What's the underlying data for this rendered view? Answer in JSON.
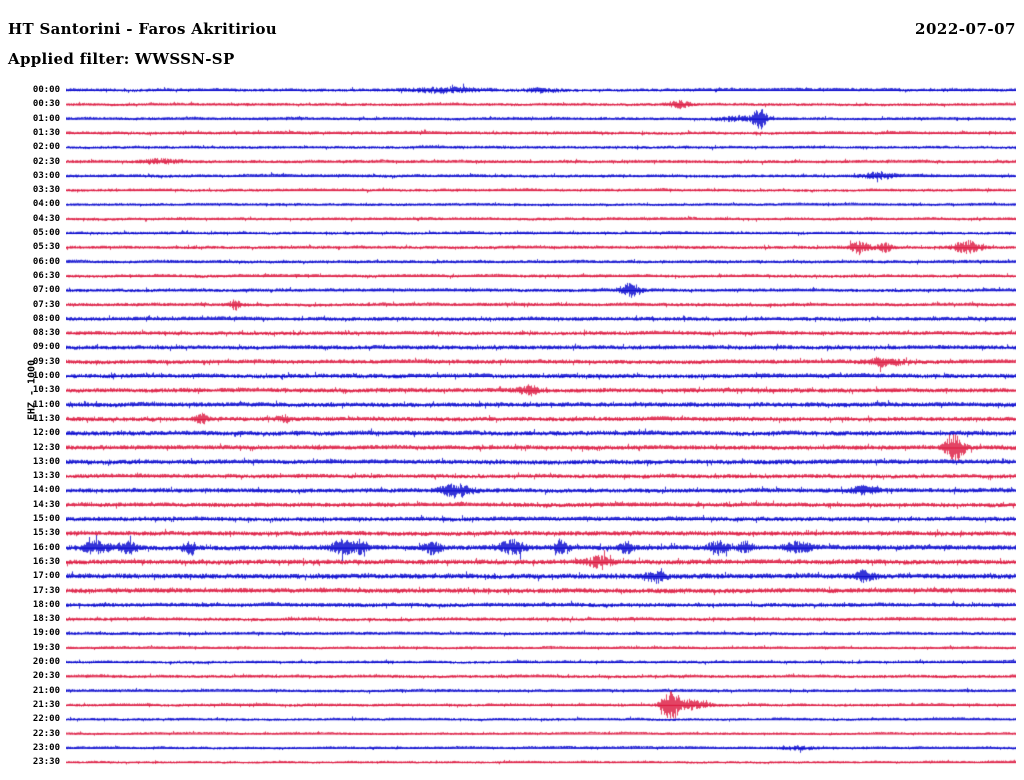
{
  "header": {
    "station_title": "HT Santorini - Faros Akritiriou",
    "date": "2022-07-07",
    "filter_label": "Applied filter: WWSSN-SP"
  },
  "axis": {
    "ylabel": "EHZ - 1000"
  },
  "chart_data": {
    "type": "line",
    "subtype": "helicorder-seismogram",
    "title": "HT Santorini - Faros Akritiriou",
    "date": "2022-07-07",
    "filter": "WWSSN-SP",
    "channel": "EHZ",
    "gain": 1000,
    "row_minutes": 30,
    "legend_position": "none",
    "grid": false,
    "colors": {
      "blue": "#0000cd",
      "red": "#dc143c"
    },
    "rows": [
      {
        "t": "00:00",
        "c": "blue",
        "amp": 1.2,
        "events": [
          {
            "x": 0.4,
            "a": 1.5,
            "w": 25
          },
          {
            "x": 0.5,
            "a": 1.2,
            "w": 12
          }
        ]
      },
      {
        "t": "00:30",
        "c": "red",
        "amp": 1.1,
        "events": [
          {
            "x": 0.645,
            "a": 2.5,
            "w": 7
          }
        ]
      },
      {
        "t": "01:00",
        "c": "blue",
        "amp": 1.1,
        "events": [
          {
            "x": 0.73,
            "a": 7.0,
            "w": 5
          },
          {
            "x": 0.705,
            "a": 1.5,
            "w": 12
          }
        ]
      },
      {
        "t": "01:30",
        "c": "red",
        "amp": 1.2,
        "events": []
      },
      {
        "t": "02:00",
        "c": "blue",
        "amp": 1.1,
        "events": []
      },
      {
        "t": "02:30",
        "c": "red",
        "amp": 1.2,
        "events": [
          {
            "x": 0.1,
            "a": 1.2,
            "w": 15
          }
        ]
      },
      {
        "t": "03:00",
        "c": "blue",
        "amp": 1.2,
        "events": [
          {
            "x": 0.855,
            "a": 2.2,
            "w": 10
          }
        ]
      },
      {
        "t": "03:30",
        "c": "red",
        "amp": 1.1,
        "events": []
      },
      {
        "t": "04:00",
        "c": "blue",
        "amp": 1.0,
        "events": []
      },
      {
        "t": "04:30",
        "c": "red",
        "amp": 1.1,
        "events": []
      },
      {
        "t": "05:00",
        "c": "blue",
        "amp": 1.1,
        "events": []
      },
      {
        "t": "05:30",
        "c": "red",
        "amp": 1.2,
        "events": [
          {
            "x": 0.835,
            "a": 4.0,
            "w": 7
          },
          {
            "x": 0.862,
            "a": 3.0,
            "w": 5
          },
          {
            "x": 0.948,
            "a": 4.0,
            "w": 9
          }
        ]
      },
      {
        "t": "06:00",
        "c": "blue",
        "amp": 1.2,
        "events": []
      },
      {
        "t": "06:30",
        "c": "red",
        "amp": 1.2,
        "events": []
      },
      {
        "t": "07:00",
        "c": "blue",
        "amp": 1.3,
        "events": [
          {
            "x": 0.594,
            "a": 4.0,
            "w": 7
          }
        ]
      },
      {
        "t": "07:30",
        "c": "red",
        "amp": 1.3,
        "events": [
          {
            "x": 0.178,
            "a": 2.8,
            "w": 4
          }
        ]
      },
      {
        "t": "08:00",
        "c": "blue",
        "amp": 1.5,
        "events": []
      },
      {
        "t": "08:30",
        "c": "red",
        "amp": 1.5,
        "events": []
      },
      {
        "t": "09:00",
        "c": "blue",
        "amp": 1.6,
        "events": []
      },
      {
        "t": "09:30",
        "c": "red",
        "amp": 1.6,
        "events": [
          {
            "x": 0.862,
            "a": 2.0,
            "w": 12
          }
        ]
      },
      {
        "t": "10:00",
        "c": "blue",
        "amp": 1.7,
        "events": []
      },
      {
        "t": "10:30",
        "c": "red",
        "amp": 1.7,
        "events": [
          {
            "x": 0.487,
            "a": 2.0,
            "w": 7
          }
        ]
      },
      {
        "t": "11:00",
        "c": "blue",
        "amp": 1.8,
        "events": []
      },
      {
        "t": "11:30",
        "c": "red",
        "amp": 1.7,
        "events": [
          {
            "x": 0.142,
            "a": 2.2,
            "w": 4
          },
          {
            "x": 0.23,
            "a": 1.6,
            "w": 4
          }
        ]
      },
      {
        "t": "12:00",
        "c": "blue",
        "amp": 1.8,
        "events": []
      },
      {
        "t": "12:30",
        "c": "red",
        "amp": 1.7,
        "events": [
          {
            "x": 0.935,
            "a": 5.5,
            "w": 7
          }
        ]
      },
      {
        "t": "13:00",
        "c": "blue",
        "amp": 1.8,
        "events": []
      },
      {
        "t": "13:30",
        "c": "red",
        "amp": 1.6,
        "events": []
      },
      {
        "t": "14:00",
        "c": "blue",
        "amp": 1.7,
        "events": [
          {
            "x": 0.41,
            "a": 3.0,
            "w": 10
          },
          {
            "x": 0.84,
            "a": 1.6,
            "w": 9
          }
        ]
      },
      {
        "t": "14:30",
        "c": "red",
        "amp": 1.7,
        "events": []
      },
      {
        "t": "15:00",
        "c": "blue",
        "amp": 1.7,
        "events": []
      },
      {
        "t": "15:30",
        "c": "red",
        "amp": 1.8,
        "events": []
      },
      {
        "t": "16:00",
        "c": "blue",
        "amp": 1.9,
        "events": [
          {
            "x": 0.03,
            "a": 2.2,
            "w": 9
          },
          {
            "x": 0.065,
            "a": 2.2,
            "w": 7
          },
          {
            "x": 0.13,
            "a": 2.6,
            "w": 5
          },
          {
            "x": 0.29,
            "a": 3.0,
            "w": 7
          },
          {
            "x": 0.31,
            "a": 2.6,
            "w": 5
          },
          {
            "x": 0.385,
            "a": 2.2,
            "w": 7
          },
          {
            "x": 0.47,
            "a": 2.6,
            "w": 9
          },
          {
            "x": 0.52,
            "a": 2.2,
            "w": 5
          },
          {
            "x": 0.59,
            "a": 2.2,
            "w": 5
          },
          {
            "x": 0.685,
            "a": 2.6,
            "w": 7
          },
          {
            "x": 0.715,
            "a": 2.2,
            "w": 5
          },
          {
            "x": 0.77,
            "a": 2.2,
            "w": 9
          }
        ]
      },
      {
        "t": "16:30",
        "c": "red",
        "amp": 1.9,
        "events": [
          {
            "x": 0.56,
            "a": 2.0,
            "w": 9
          }
        ]
      },
      {
        "t": "17:00",
        "c": "blue",
        "amp": 2.0,
        "events": [
          {
            "x": 0.62,
            "a": 2.0,
            "w": 7
          },
          {
            "x": 0.84,
            "a": 2.0,
            "w": 7
          }
        ]
      },
      {
        "t": "17:30",
        "c": "red",
        "amp": 1.9,
        "events": []
      },
      {
        "t": "18:00",
        "c": "blue",
        "amp": 1.6,
        "events": []
      },
      {
        "t": "18:30",
        "c": "red",
        "amp": 1.3,
        "events": []
      },
      {
        "t": "19:00",
        "c": "blue",
        "amp": 1.2,
        "events": []
      },
      {
        "t": "19:30",
        "c": "red",
        "amp": 1.0,
        "events": []
      },
      {
        "t": "20:00",
        "c": "blue",
        "amp": 1.1,
        "events": []
      },
      {
        "t": "20:30",
        "c": "red",
        "amp": 1.2,
        "events": []
      },
      {
        "t": "21:00",
        "c": "blue",
        "amp": 1.1,
        "events": []
      },
      {
        "t": "21:30",
        "c": "red",
        "amp": 1.1,
        "events": [
          {
            "x": 0.636,
            "a": 11.0,
            "w": 6
          },
          {
            "x": 0.658,
            "a": 3.5,
            "w": 11
          }
        ]
      },
      {
        "t": "22:00",
        "c": "blue",
        "amp": 1.0,
        "events": []
      },
      {
        "t": "22:30",
        "c": "red",
        "amp": 0.9,
        "events": []
      },
      {
        "t": "23:00",
        "c": "blue",
        "amp": 1.0,
        "events": [
          {
            "x": 0.77,
            "a": 1.3,
            "w": 12
          }
        ]
      },
      {
        "t": "23:30",
        "c": "red",
        "amp": 0.9,
        "events": []
      }
    ]
  }
}
